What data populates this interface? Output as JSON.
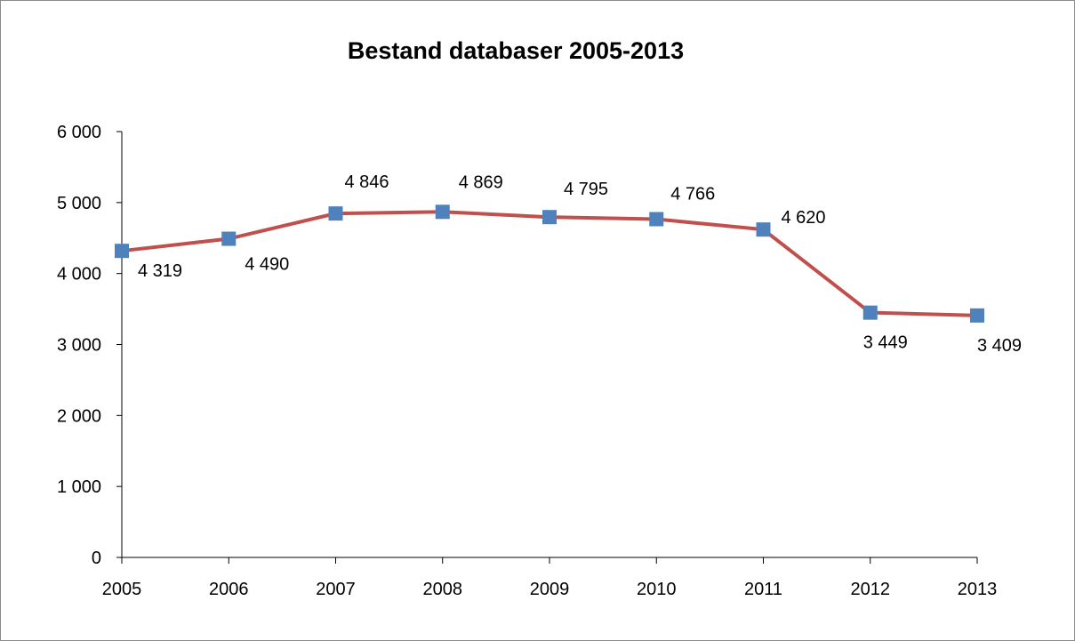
{
  "chart_data": {
    "type": "line",
    "title": "Bestand databaser 2005-2013",
    "xlabel": "",
    "ylabel": "",
    "x": [
      "2005",
      "2006",
      "2007",
      "2008",
      "2009",
      "2010",
      "2011",
      "2012",
      "2013"
    ],
    "series": [
      {
        "values": [
          4319,
          4490,
          4846,
          4869,
          4795,
          4766,
          4620,
          3449,
          3409
        ],
        "labels": [
          "4 319",
          "4 490",
          "4 846",
          "4 869",
          "4 795",
          "4 766",
          "4 620",
          "3 449",
          "3 409"
        ],
        "line_color": "#c0504d",
        "marker_color": "#4f81bd",
        "marker": "square"
      }
    ],
    "ylim": [
      0,
      6000
    ],
    "yticks": [
      0,
      1000,
      2000,
      3000,
      4000,
      5000,
      6000
    ],
    "ytick_labels": [
      "0",
      "1 000",
      "2 000",
      "3 000",
      "4 000",
      "5 000",
      "6 000"
    ],
    "grid": false,
    "legend": "none"
  }
}
